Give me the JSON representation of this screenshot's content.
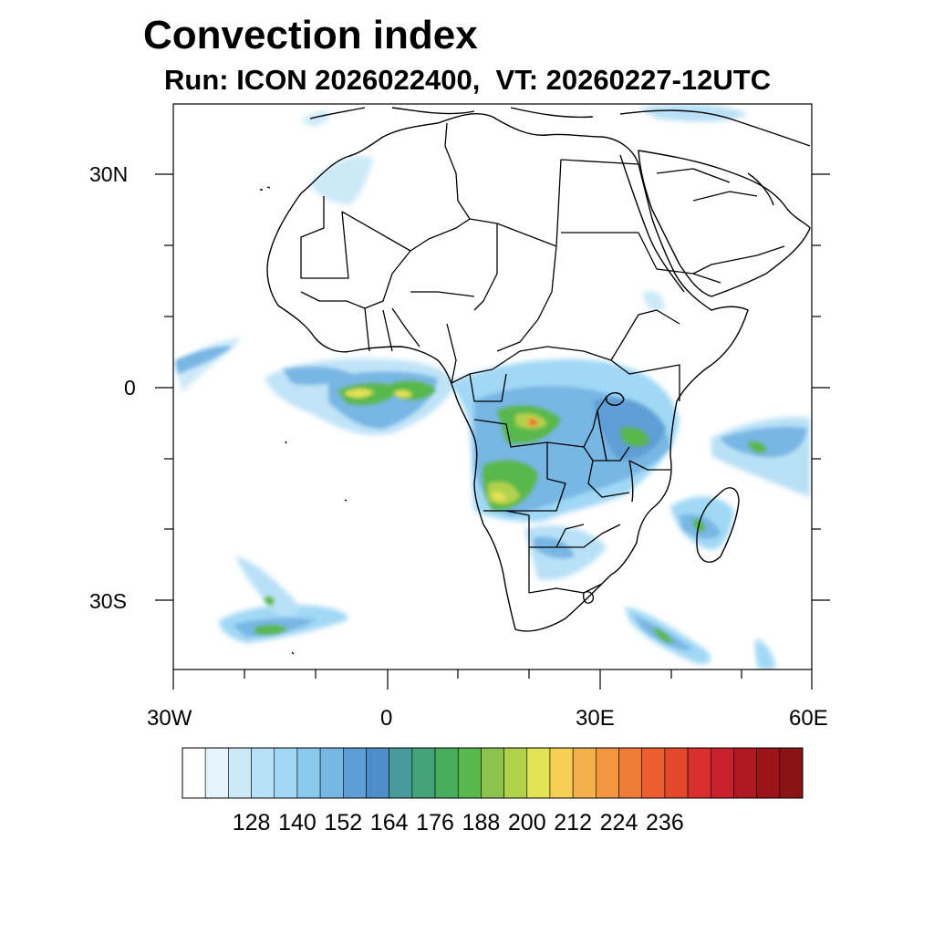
{
  "title": "Convection index",
  "subtitle": "Run: ICON 2026022400,  VT: 20260227-12UTC",
  "map": {
    "region": "Africa",
    "lon_range": [
      -30,
      60
    ],
    "lat_range": [
      -40,
      40
    ],
    "lat_labels": [
      "30N",
      "0",
      "30S"
    ],
    "lon_labels": [
      "30W",
      "0",
      "30E",
      "60E"
    ],
    "field": "Convection index"
  },
  "colorbar": {
    "labels": [
      "128",
      "140",
      "152",
      "164",
      "176",
      "188",
      "200",
      "212",
      "224",
      "236"
    ],
    "colors": [
      "#ffffff",
      "#e6f4fc",
      "#cce9f8",
      "#b8e0f6",
      "#a0d8f5",
      "#8ac8ee",
      "#78b6e4",
      "#5e9ed6",
      "#4b8ec8",
      "#4a9a9c",
      "#45a37a",
      "#48ae5c",
      "#58b84c",
      "#8cc350",
      "#b2d24e",
      "#e4e255",
      "#f7cf54",
      "#f4b04a",
      "#f49640",
      "#f07a38",
      "#ea5e30",
      "#e2482c",
      "#d8302c",
      "#c8202c",
      "#b01822",
      "#9a1418",
      "#8a1414"
    ]
  }
}
